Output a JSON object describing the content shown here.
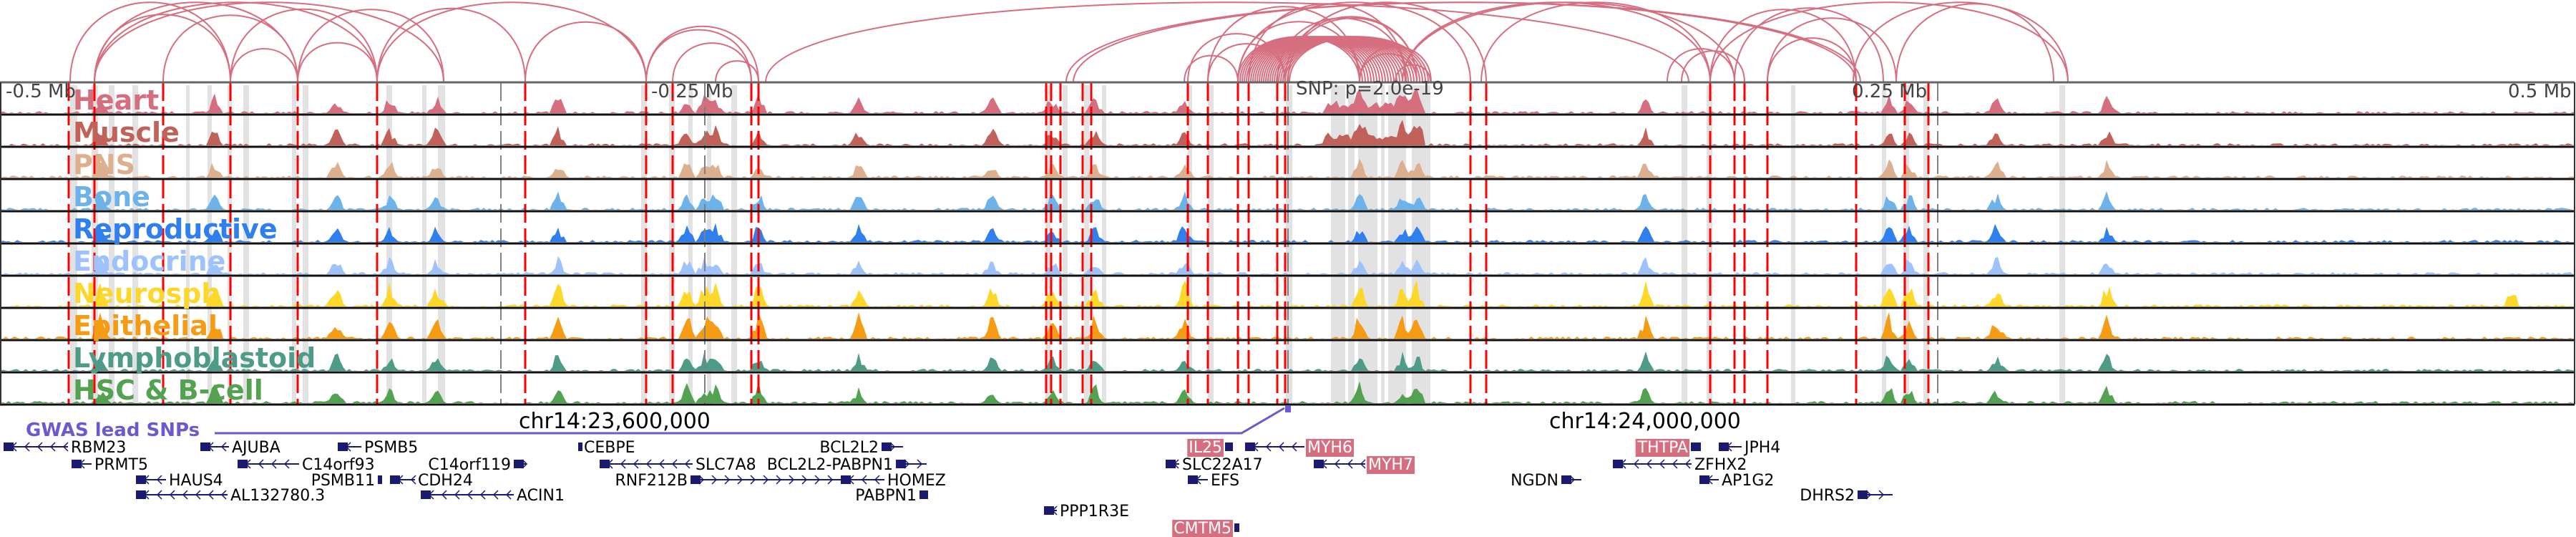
{
  "window": {
    "region": "chr14"
  },
  "axis": {
    "top_ticks": [
      "-0.5 Mb",
      "-0.25 Mb",
      "SNP: p=2.0e-19",
      "0.25 Mb",
      "0.5 Mb"
    ],
    "bottom_ticks": [
      "chr14:23,600,000",
      "chr14:24,000,000"
    ]
  },
  "colors": {
    "arc": "#d56e7f",
    "enhancer_line": "#ff0000",
    "snp_line": "#808080",
    "highlight_band": "#e2e2e2",
    "gwas": "#6a5acd",
    "gene": "#1a1a6e",
    "gene_highlight_bg": "#d56e7f"
  },
  "tracks": [
    {
      "name": "Heart",
      "color": "#d56e7f"
    },
    {
      "name": "Muscle",
      "color": "#c0625a"
    },
    {
      "name": "PNS",
      "color": "#dcb08e"
    },
    {
      "name": "Bone",
      "color": "#6db3ea"
    },
    {
      "name": "Reproductive",
      "color": "#2f7fef"
    },
    {
      "name": "Endocrine",
      "color": "#9ec2fb"
    },
    {
      "name": "Neurosph",
      "color": "#fdd82b"
    },
    {
      "name": "Epithelial",
      "color": "#f59b14"
    },
    {
      "name": "Lymphoblastoid",
      "color": "#4e9c87"
    },
    {
      "name": "HSC & B-cell",
      "color": "#52a252"
    }
  ],
  "gwas": {
    "label": "GWAS lead SNPs"
  },
  "genes": [
    {
      "name": "RBM23",
      "strand": "-",
      "row": 0,
      "highlight": false
    },
    {
      "name": "PRMT5",
      "strand": "-",
      "row": 1,
      "highlight": false
    },
    {
      "name": "HAUS4",
      "strand": "-",
      "row": 2,
      "highlight": false
    },
    {
      "name": "AL132780.3",
      "strand": "-",
      "row": 3,
      "highlight": false
    },
    {
      "name": "AJUBA",
      "strand": "-",
      "row": 0,
      "highlight": false
    },
    {
      "name": "C14orf93",
      "strand": "-",
      "row": 1,
      "highlight": false
    },
    {
      "name": "PSMB5",
      "strand": "-",
      "row": 0,
      "highlight": false
    },
    {
      "name": "PSMB11",
      "strand": "+",
      "row": 2,
      "highlight": false
    },
    {
      "name": "C14orf119",
      "strand": "+",
      "row": 1,
      "highlight": false
    },
    {
      "name": "CDH24",
      "strand": "-",
      "row": 2,
      "highlight": false
    },
    {
      "name": "ACIN1",
      "strand": "-",
      "row": 3,
      "highlight": false
    },
    {
      "name": "CEBPE",
      "strand": "-",
      "row": 0,
      "highlight": false
    },
    {
      "name": "SLC7A8",
      "strand": "-",
      "row": 1,
      "highlight": false
    },
    {
      "name": "RNF212B",
      "strand": "+",
      "row": 2,
      "highlight": false
    },
    {
      "name": "BCL2L2",
      "strand": "+",
      "row": 0,
      "highlight": false
    },
    {
      "name": "BCL2L2-PABPN1",
      "strand": "+",
      "row": 1,
      "highlight": false
    },
    {
      "name": "HOMEZ",
      "strand": "-",
      "row": 2,
      "highlight": false
    },
    {
      "name": "PABPN1",
      "strand": "+",
      "row": 3,
      "highlight": false
    },
    {
      "name": "PPP1R3E",
      "strand": "-",
      "row": 4,
      "highlight": false
    },
    {
      "name": "IL25",
      "strand": "+",
      "row": 0,
      "highlight": true
    },
    {
      "name": "SLC22A17",
      "strand": "-",
      "row": 1,
      "highlight": false
    },
    {
      "name": "EFS",
      "strand": "-",
      "row": 2,
      "highlight": false
    },
    {
      "name": "CMTM5",
      "strand": "+",
      "row": 5,
      "highlight": true
    },
    {
      "name": "MYH6",
      "strand": "-",
      "row": 0,
      "highlight": true
    },
    {
      "name": "MYH7",
      "strand": "-",
      "row": 1,
      "highlight": true
    },
    {
      "name": "NGDN",
      "strand": "+",
      "row": 2,
      "highlight": false
    },
    {
      "name": "THTPA",
      "strand": "+",
      "row": 0,
      "highlight": true
    },
    {
      "name": "ZFHX2",
      "strand": "-",
      "row": 1,
      "highlight": false
    },
    {
      "name": "JPH4",
      "strand": "-",
      "row": 0,
      "highlight": false
    },
    {
      "name": "AP1G2",
      "strand": "-",
      "row": 2,
      "highlight": false
    },
    {
      "name": "DHRS2",
      "strand": "+",
      "row": 3,
      "highlight": false
    }
  ]
}
